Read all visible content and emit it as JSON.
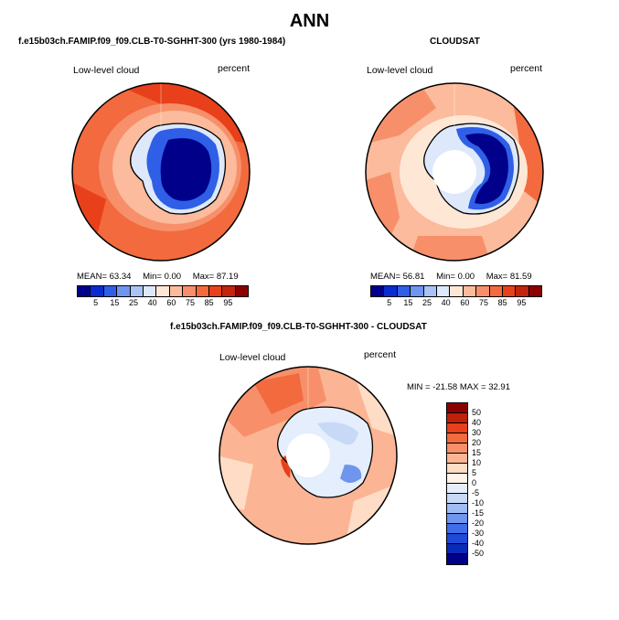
{
  "figure": {
    "title": "ANN"
  },
  "panel_model": {
    "title": "f.e15b03ch.FAMIP.f09_f09.CLB-T0-SGHHT-300 (yrs 1980-1984)",
    "variable": "Low-level cloud",
    "units": "percent",
    "mean_label": "MEAN=",
    "mean": "63.34",
    "min_label": "Min=",
    "min": "0.00",
    "max_label": "Max=",
    "max": "87.19"
  },
  "panel_obs": {
    "title": "CLOUDSAT",
    "variable": "Low-level cloud",
    "units": "percent",
    "mean_label": "MEAN=",
    "mean": "56.81",
    "min_label": "Min=",
    "min": "0.00",
    "max_label": "Max=",
    "max": "81.59"
  },
  "panel_diff": {
    "title": "f.e15b03ch.FAMIP.f09_f09.CLB-T0-SGHHT-300 - CLOUDSAT",
    "variable": "Low-level cloud",
    "units": "percent",
    "range_text": "MIN = -21.58 MAX =  32.91"
  },
  "abs_colorbar": {
    "colors": [
      "#00008b",
      "#0a2bd0",
      "#2f5fe6",
      "#6f95ef",
      "#a9c3f5",
      "#dde8fb",
      "#ffe7d6",
      "#fbbb9c",
      "#f7906a",
      "#f26a3d",
      "#e8401b",
      "#c2240e",
      "#8b0000"
    ],
    "labels": [
      "5",
      "15",
      "25",
      "40",
      "60",
      "75",
      "85",
      "95"
    ]
  },
  "diff_colorbar": {
    "colors": [
      "#8b0000",
      "#c0200a",
      "#e8401b",
      "#f26a3d",
      "#f7906a",
      "#fbb594",
      "#ffdcc6",
      "#fff3ea",
      "#e4eefc",
      "#c7d9f7",
      "#9fbdf2",
      "#6f95ef",
      "#3f6ee8",
      "#1f4ad8",
      "#0a2bb8",
      "#00008b"
    ],
    "labels": [
      "50",
      "40",
      "30",
      "20",
      "15",
      "10",
      "5",
      "0",
      "-5",
      "-10",
      "-15",
      "-20",
      "-30",
      "-40",
      "-50"
    ]
  }
}
